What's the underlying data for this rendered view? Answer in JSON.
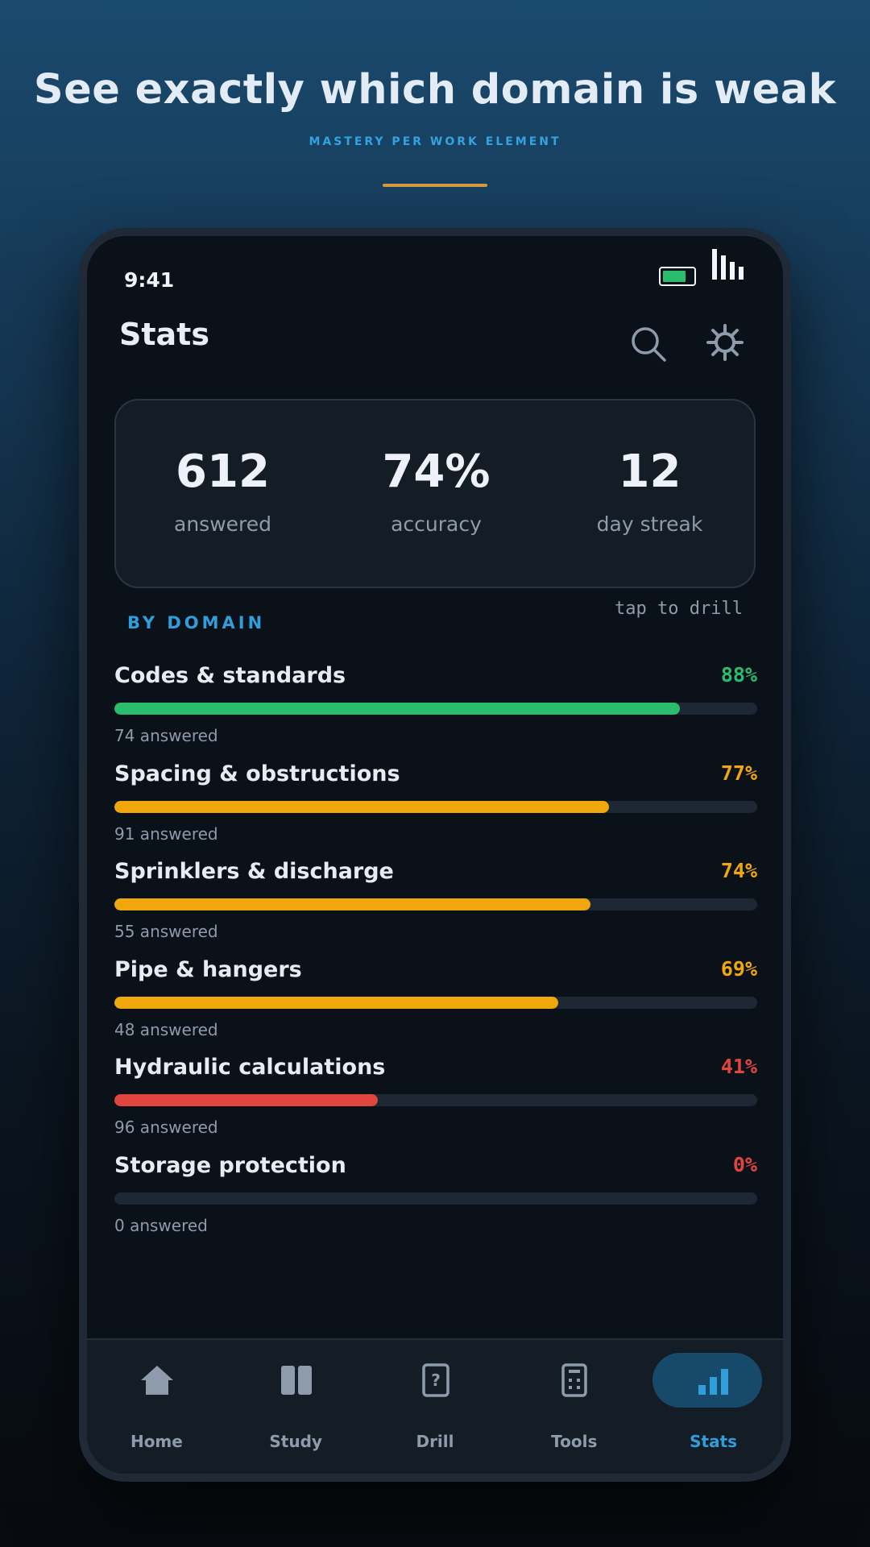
{
  "hero": {
    "title": "See exactly which domain is weak",
    "subtitle": "MASTERY PER WORK ELEMENT"
  },
  "status_bar": {
    "time": "9:41",
    "battery_icon": "battery-icon",
    "signal_icon": "signal-bars-icon"
  },
  "header": {
    "title": "Stats",
    "search_icon": "search-icon",
    "settings_icon": "gear-icon"
  },
  "summary": [
    {
      "value": "612",
      "label": "answered"
    },
    {
      "value": "74%",
      "label": "accuracy"
    },
    {
      "value": "12",
      "label": "day streak"
    }
  ],
  "section": {
    "label": "BY DOMAIN",
    "hint": "tap to drill"
  },
  "domains": [
    {
      "name": "Codes & standards",
      "percent_label": "88%",
      "mastery": 0.88,
      "answered": "74 answered",
      "color": "#2bbd6e"
    },
    {
      "name": "Spacing & obstructions",
      "percent_label": "77%",
      "mastery": 0.77,
      "answered": "91 answered",
      "color": "#f0a70c"
    },
    {
      "name": "Sprinklers & discharge",
      "percent_label": "74%",
      "mastery": 0.74,
      "answered": "55 answered",
      "color": "#f0a70c"
    },
    {
      "name": "Pipe & hangers",
      "percent_label": "69%",
      "mastery": 0.69,
      "answered": "48 answered",
      "color": "#f0a70c"
    },
    {
      "name": "Hydraulic calculations",
      "percent_label": "41%",
      "mastery": 0.41,
      "answered": "96 answered",
      "color": "#e0463d"
    },
    {
      "name": "Storage protection",
      "percent_label": "0%",
      "mastery": 0.0,
      "answered": "0 answered",
      "color": "#e0463d"
    }
  ],
  "tabs": [
    {
      "label": "Home",
      "icon": "home-icon",
      "active": false
    },
    {
      "label": "Study",
      "icon": "book-icon",
      "active": false
    },
    {
      "label": "Drill",
      "icon": "question-card-icon",
      "active": false
    },
    {
      "label": "Tools",
      "icon": "calculator-icon",
      "active": false
    },
    {
      "label": "Stats",
      "icon": "bar-chart-icon",
      "active": true
    }
  ],
  "colors": {
    "accent": "#2f9edb",
    "good": "#2bbd6e",
    "warn": "#f0a70c",
    "bad": "#e0463d",
    "hero_rule": "#d99a3c"
  }
}
